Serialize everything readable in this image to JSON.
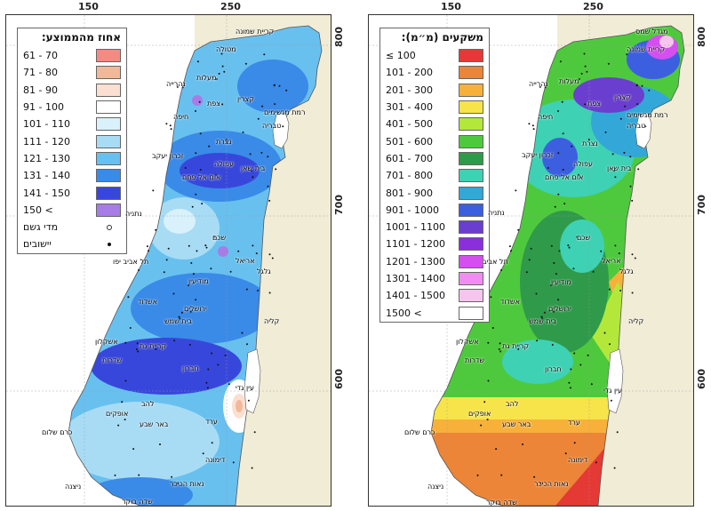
{
  "axes": {
    "x_ticks": [
      "150",
      "250"
    ],
    "y_ticks": [
      "800",
      "700",
      "600"
    ]
  },
  "left_map": {
    "legend_title": "אחוז מהממוצע:",
    "legend_items": [
      {
        "label": "61 - 70",
        "color": "#f28b82"
      },
      {
        "label": "71 - 80",
        "color": "#f0b99a"
      },
      {
        "label": "81 - 90",
        "color": "#fbe0d2"
      },
      {
        "label": "91 - 100",
        "color": "#ffffff"
      },
      {
        "label": "101 - 110",
        "color": "#d9f1fb"
      },
      {
        "label": "111 - 120",
        "color": "#a8dcf5"
      },
      {
        "label": "121 - 130",
        "color": "#68c0ef"
      },
      {
        "label": "131 - 140",
        "color": "#3a8ae8"
      },
      {
        "label": "141 - 150",
        "color": "#3847db"
      },
      {
        "label": "150 <",
        "color": "#a77ce6"
      }
    ],
    "symbols": [
      {
        "label": "מדי גשם",
        "icon": "circle-open"
      },
      {
        "label": "יישובים",
        "icon": "dot-filled"
      }
    ]
  },
  "right_map": {
    "legend_title": "משקעים (מ״מ):",
    "legend_items": [
      {
        "label": "≤ 100",
        "color": "#e53935"
      },
      {
        "label": "101 - 200",
        "color": "#ec8537"
      },
      {
        "label": "201 - 300",
        "color": "#f7b13b"
      },
      {
        "label": "301 - 400",
        "color": "#f7e44a"
      },
      {
        "label": "401 - 500",
        "color": "#b3e83b"
      },
      {
        "label": "501 - 600",
        "color": "#4ec93d"
      },
      {
        "label": "601 - 700",
        "color": "#2f9a4a"
      },
      {
        "label": "701 - 800",
        "color": "#3ed1b4"
      },
      {
        "label": "801 - 900",
        "color": "#33a7d8"
      },
      {
        "label": "901 - 1000",
        "color": "#3c5fe0"
      },
      {
        "label": "1001 - 1100",
        "color": "#6a3fcf"
      },
      {
        "label": "1101 - 1200",
        "color": "#8b2fdc"
      },
      {
        "label": "1201 - 1300",
        "color": "#d44ef0"
      },
      {
        "label": "1301 - 1400",
        "color": "#ef8ef0"
      },
      {
        "label": "1401 - 1500",
        "color": "#f5c5ee"
      },
      {
        "label": "1500 <",
        "color": "#ffffff"
      }
    ]
  },
  "places": [
    {
      "name": "קריית שמונה"
    },
    {
      "name": "מטולה"
    },
    {
      "name": "מעלות"
    },
    {
      "name": "נהרייה"
    },
    {
      "name": "צפת"
    },
    {
      "name": "קצרין"
    },
    {
      "name": "רמת מגשימים"
    },
    {
      "name": "חיפה"
    },
    {
      "name": "טבריה"
    },
    {
      "name": "נצרת"
    },
    {
      "name": "זכרון יעקב"
    },
    {
      "name": "עפולה"
    },
    {
      "name": "בית שאן"
    },
    {
      "name": "אום אל פחם"
    },
    {
      "name": "נתניה"
    },
    {
      "name": "שכם"
    },
    {
      "name": "תל אביב יפו"
    },
    {
      "name": "אריאל"
    },
    {
      "name": "גלגל"
    },
    {
      "name": "מודיעין"
    },
    {
      "name": "אשדוד"
    },
    {
      "name": "ירושלים"
    },
    {
      "name": "בית שמש"
    },
    {
      "name": "קליה"
    },
    {
      "name": "אשקלון"
    },
    {
      "name": "קריית גת"
    },
    {
      "name": "שדרות"
    },
    {
      "name": "חברון"
    },
    {
      "name": "עין גדי"
    },
    {
      "name": "להב"
    },
    {
      "name": "אופקים"
    },
    {
      "name": "באר שבע"
    },
    {
      "name": "ערד"
    },
    {
      "name": "כרם שלום"
    },
    {
      "name": "דימונה"
    },
    {
      "name": "נאות הכיכר"
    },
    {
      "name": "ניצנה"
    },
    {
      "name": "שדה בוקר"
    }
  ],
  "right_places": [
    {
      "name": "מגדל שמס"
    },
    {
      "name": "קריית שמונה"
    },
    {
      "name": "מעלות"
    },
    {
      "name": "נהרייה"
    },
    {
      "name": "צפת"
    },
    {
      "name": "קצרין"
    },
    {
      "name": "רמת מגשימים"
    },
    {
      "name": "חיפה"
    },
    {
      "name": "טבריה"
    },
    {
      "name": "נצרת"
    },
    {
      "name": "זכרון יעקב"
    },
    {
      "name": "עפולה"
    },
    {
      "name": "בית שאן"
    },
    {
      "name": "אום אל פחם"
    },
    {
      "name": "נתניה"
    },
    {
      "name": "שכם"
    },
    {
      "name": "תל אביב"
    },
    {
      "name": "אריאל"
    },
    {
      "name": "גלגל"
    },
    {
      "name": "מודיעין"
    },
    {
      "name": "אשדוד"
    },
    {
      "name": "ירושלים"
    },
    {
      "name": "בית שמש"
    },
    {
      "name": "קליה"
    },
    {
      "name": "אשקלון"
    },
    {
      "name": "קריית גת"
    },
    {
      "name": "שדרות"
    },
    {
      "name": "חברון"
    },
    {
      "name": "עין גדי"
    },
    {
      "name": "להב"
    },
    {
      "name": "אופקים"
    },
    {
      "name": "באר שבע"
    },
    {
      "name": "ערד"
    },
    {
      "name": "כרם שלום"
    },
    {
      "name": "דימונה"
    },
    {
      "name": "נאות הכיכר"
    },
    {
      "name": "ניצנה"
    },
    {
      "name": "שדה בוקר"
    }
  ]
}
